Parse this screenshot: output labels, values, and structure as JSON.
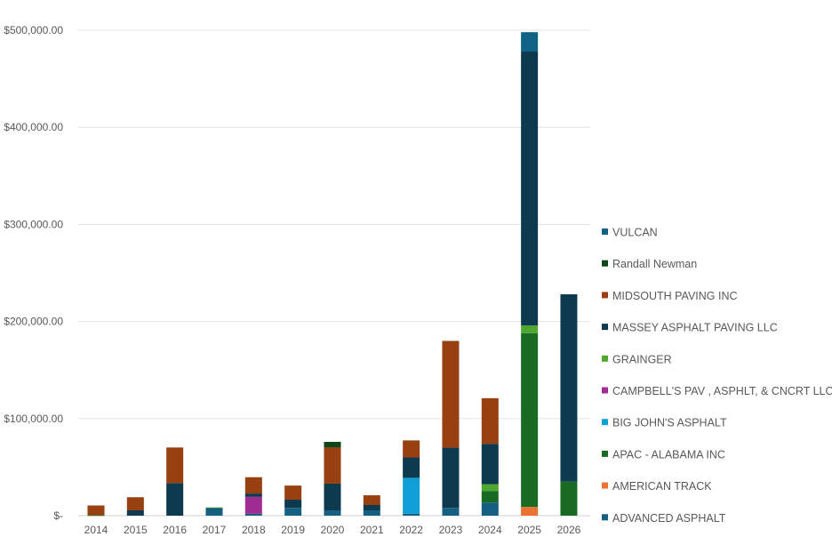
{
  "chart_data": {
    "type": "bar",
    "stacked": true,
    "title": "",
    "xlabel": "",
    "ylabel": "",
    "ylim": [
      0,
      500000
    ],
    "y_ticks": [
      0,
      100000,
      200000,
      300000,
      400000,
      500000
    ],
    "y_tick_labels": [
      "$-",
      "$100,000.00",
      "$200,000.00",
      "$300,000.00",
      "$400,000.00",
      "$500,000.00"
    ],
    "grid": true,
    "legend_position": "right",
    "categories": [
      "2014",
      "2015",
      "2016",
      "2017",
      "2018",
      "2019",
      "2020",
      "2021",
      "2022",
      "2023",
      "2024",
      "2025",
      "2026"
    ],
    "series": [
      {
        "name": "ADVANCED ASPHALT",
        "color": "#156082",
        "values": [
          0,
          0,
          0,
          8000,
          2000,
          8000,
          5500,
          5500,
          2000,
          8000,
          13500,
          0,
          0
        ]
      },
      {
        "name": "AMERICAN TRACK",
        "color": "#e97132",
        "values": [
          0,
          0,
          0,
          0,
          0,
          0,
          0,
          0,
          0,
          0,
          0,
          9000,
          0
        ]
      },
      {
        "name": "APAC - ALABAMA INC",
        "color": "#196b24",
        "values": [
          500,
          0,
          0,
          0,
          0,
          0,
          0,
          0,
          0,
          0,
          12000,
          179000,
          35000
        ]
      },
      {
        "name": "BIG JOHN'S ASPHALT",
        "color": "#0f9ed5",
        "values": [
          0,
          0,
          0,
          0,
          0,
          0,
          0,
          0,
          37000,
          0,
          0,
          0,
          0
        ]
      },
      {
        "name": "CAMPBELL'S PAV , ASPHLT, & CNCRT LLC",
        "color": "#a02b93",
        "values": [
          0,
          0,
          0,
          0,
          17400,
          0,
          0,
          0,
          0,
          0,
          0,
          0,
          0
        ]
      },
      {
        "name": "GRAINGER",
        "color": "#4ea72e",
        "values": [
          0,
          0,
          0,
          500,
          0,
          0,
          0,
          0,
          0,
          0,
          7000,
          8000,
          0
        ]
      },
      {
        "name": "MASSEY ASPHALT PAVING LLC",
        "color": "#0e3a50",
        "values": [
          0,
          5500,
          33600,
          0,
          3400,
          8500,
          27500,
          5500,
          21000,
          62000,
          41500,
          282000,
          193000
        ]
      },
      {
        "name": "MIDSOUTH PAVING INC",
        "color": "#984010",
        "values": [
          10000,
          13500,
          36600,
          0,
          16800,
          14500,
          37500,
          10000,
          17500,
          110000,
          47000,
          0,
          0
        ]
      },
      {
        "name": "Randall Newman",
        "color": "#0c4718",
        "values": [
          0,
          0,
          0,
          0,
          0,
          0,
          5500,
          0,
          0,
          0,
          0,
          0,
          0
        ]
      },
      {
        "name": "VULCAN",
        "color": "#106385",
        "values": [
          0,
          0,
          0,
          0,
          0,
          0,
          0,
          0,
          0,
          0,
          0,
          20000,
          0
        ]
      }
    ]
  }
}
